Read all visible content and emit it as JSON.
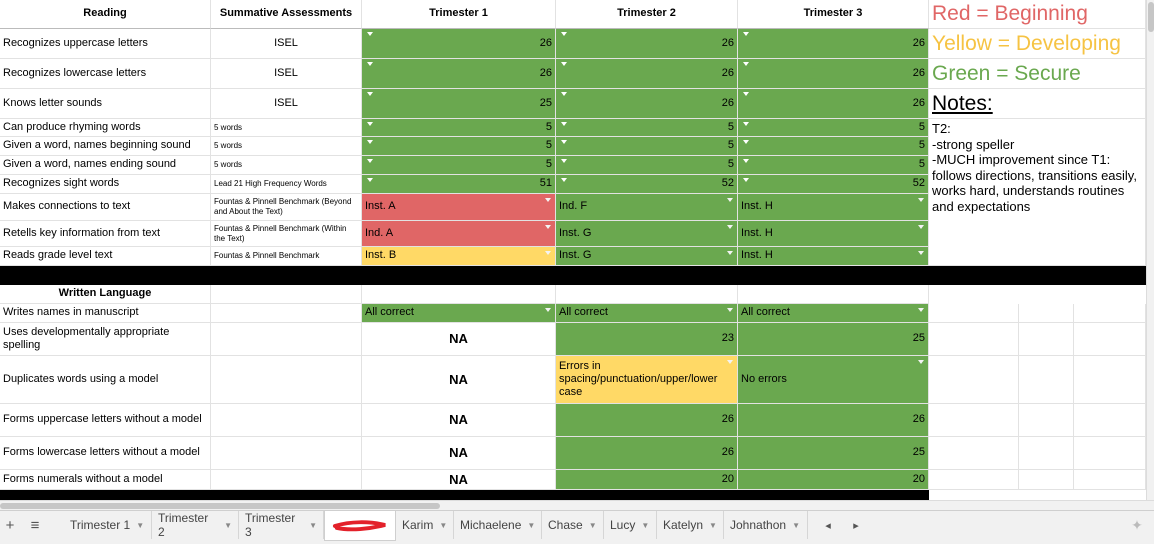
{
  "header": {
    "reading": "Reading",
    "summative": "Summative Assessments",
    "t1": "Trimester 1",
    "t2": "Trimester 2",
    "t3": "Trimester 3"
  },
  "legend": {
    "red": "Red = Beginning",
    "yellow": "Yellow = Developing",
    "green": "Green = Secure",
    "notes_title": "Notes:",
    "notes_body": "T2:\n-strong speller\n-MUCH improvement since T1: follows directions, transitions easily, works hard, understands routines and expectations"
  },
  "reading_rows": [
    {
      "skill": "Recognizes uppercase letters",
      "assessment": "ISEL",
      "t1": "26",
      "t2": "26",
      "t3": "26"
    },
    {
      "skill": "Recognizes lowercase letters",
      "assessment": "ISEL",
      "t1": "26",
      "t2": "26",
      "t3": "26"
    },
    {
      "skill": "Knows letter sounds",
      "assessment": "ISEL",
      "t1": "25",
      "t2": "26",
      "t3": "26"
    },
    {
      "skill": "Can produce rhyming words",
      "assessment": "5 words",
      "t1": "5",
      "t2": "5",
      "t3": "5"
    },
    {
      "skill": "Given a word, names beginning sound",
      "assessment": "5 words",
      "t1": "5",
      "t2": "5",
      "t3": "5"
    },
    {
      "skill": "Given a word, names ending sound",
      "assessment": "5 words",
      "t1": "5",
      "t2": "5",
      "t3": "5"
    },
    {
      "skill": "Recognizes sight words",
      "assessment": "Lead 21 High Frequency Words",
      "t1": "51",
      "t2": "52",
      "t3": "52"
    },
    {
      "skill": "Makes connections to text",
      "assessment": "Fountas & Pinnell Benchmark (Beyond and About the Text)",
      "t1": "Inst. A",
      "t2": "Ind. F",
      "t3": "Inst. H"
    },
    {
      "skill": "Retells key information from text",
      "assessment": "Fountas & Pinnell Benchmark (Within the Text)",
      "t1": "Ind. A",
      "t2": "Inst. G",
      "t3": "Inst. H"
    },
    {
      "skill": "Reads grade level text",
      "assessment": "Fountas & Pinnell Benchmark",
      "t1": "Inst. B",
      "t2": "Inst. G",
      "t3": "Inst. H"
    }
  ],
  "written": {
    "title": "Written Language",
    "rows": [
      {
        "skill": "Writes names in manuscript",
        "t1": "All correct",
        "t2": "All correct",
        "t3": "All correct"
      },
      {
        "skill": "Uses developmentally appropriate spelling",
        "t1": "NA",
        "t2": "23",
        "t3": "25"
      },
      {
        "skill": "Duplicates words using a model",
        "t1": "NA",
        "t2": "Errors in spacing/punctuation/upper/lower case",
        "t3": "No errors"
      },
      {
        "skill": "Forms uppercase letters without a model",
        "t1": "NA",
        "t2": "26",
        "t3": "26"
      },
      {
        "skill": "Forms lowercase letters without a model",
        "t1": "NA",
        "t2": "26",
        "t3": "25"
      },
      {
        "skill": "Forms numerals without a model",
        "t1": "NA",
        "t2": "20",
        "t3": "20"
      }
    ]
  },
  "tabs": [
    "Trimester 1",
    "Trimester 2",
    "Trimester 3",
    "",
    "Karim",
    "Michaelene",
    "Chase",
    "Lucy",
    "Katelyn",
    "Johnathon"
  ],
  "colors": {
    "green": "#6aa84f",
    "red": "#e06666",
    "yellow": "#ffd966",
    "legend_red": "#e06666",
    "legend_yellow": "#f6c343",
    "legend_green": "#6aa84f"
  }
}
